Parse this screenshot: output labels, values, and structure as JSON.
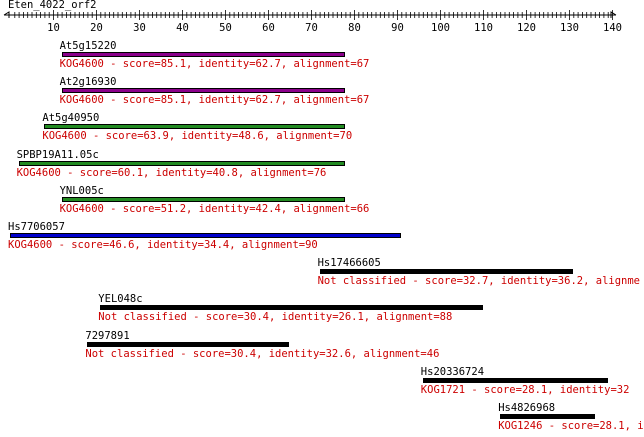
{
  "query": {
    "name": "Eten_4022_orf2",
    "length": 140,
    "ticks": [
      10,
      20,
      30,
      40,
      50,
      60,
      70,
      80,
      90,
      100,
      110,
      120,
      130,
      140
    ]
  },
  "colors": {
    "purple": "#8b008b",
    "green": "#228b22",
    "blue": "#0000cc",
    "black": "#000000",
    "label": "#cc0000"
  },
  "hits": [
    {
      "name": "At5g15220",
      "start": 12,
      "end": 78,
      "color": "purple",
      "desc": "KOG4600 - score=85.1, identity=62.7, alignment=67"
    },
    {
      "name": "At2g16930",
      "start": 12,
      "end": 78,
      "color": "purple",
      "desc": "KOG4600 - score=85.1, identity=62.7, alignment=67"
    },
    {
      "name": "At5g40950",
      "start": 8,
      "end": 78,
      "color": "green",
      "desc": "KOG4600 - score=63.9, identity=48.6, alignment=70"
    },
    {
      "name": "SPBP19A11.05c",
      "start": 2,
      "end": 78,
      "color": "green",
      "desc": "KOG4600 - score=60.1, identity=40.8, alignment=76"
    },
    {
      "name": "YNL005c",
      "start": 12,
      "end": 78,
      "color": "green",
      "desc": "KOG4600 - score=51.2, identity=42.4, alignment=66"
    },
    {
      "name": "Hs7706057",
      "start": 0,
      "end": 91,
      "color": "blue",
      "desc": "KOG4600 - score=46.6, identity=34.4, alignment=90"
    },
    {
      "name": "Hs17466605",
      "start": 72,
      "end": 131,
      "color": "black",
      "desc": "Not classified - score=32.7, identity=36.2, alignme"
    },
    {
      "name": "YEL048c",
      "start": 21,
      "end": 110,
      "color": "black",
      "desc": "Not classified - score=30.4, identity=26.1, alignment=88"
    },
    {
      "name": "7297891",
      "start": 18,
      "end": 65,
      "color": "black",
      "desc": "Not classified - score=30.4, identity=32.6, alignment=46"
    },
    {
      "name": "Hs20336724",
      "start": 96,
      "end": 139,
      "color": "black",
      "desc": "KOG1721 - score=28.1, identity=32"
    },
    {
      "name": "Hs4826968",
      "start": 114,
      "end": 136,
      "color": "black",
      "desc": "KOG1246 - score=28.1, i"
    }
  ]
}
